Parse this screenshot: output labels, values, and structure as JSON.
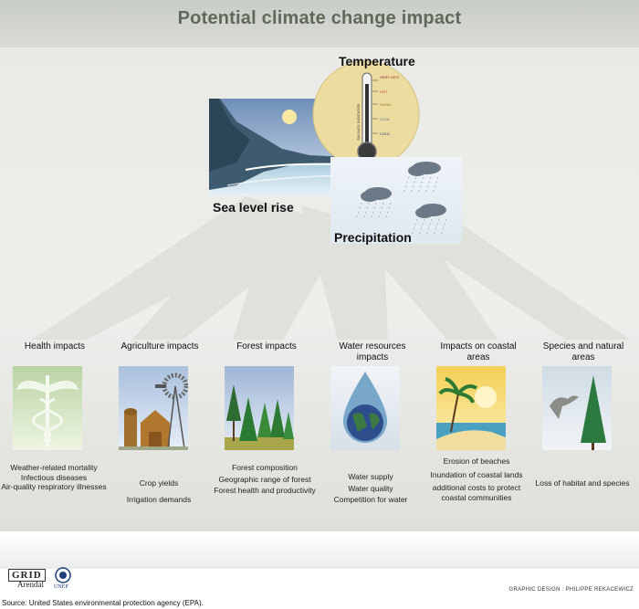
{
  "title": "Potential climate change impact",
  "drivers": {
    "temperature": "Temperature",
    "sea_level": "Sea level rise",
    "precipitation": "Precipitation",
    "thermometer": {
      "scale_label": "SAVINGS INDICATOR",
      "marks": [
        "VERY HOT!",
        "HOT",
        "WARM",
        "COOL",
        "COLD"
      ]
    }
  },
  "categories": [
    {
      "title": "Health impacts",
      "items": [
        "Weather-related mortality",
        "Infectious diseases",
        "Air-quality respiratory illnesses"
      ]
    },
    {
      "title": "Agriculture impacts",
      "items": [
        "Crop yields",
        "Irrigation demands"
      ]
    },
    {
      "title": "Forest impacts",
      "items": [
        "Forest composition",
        "Geographic range of forest",
        "Forest health and productivity"
      ]
    },
    {
      "title": "Water resources impacts",
      "items": [
        "Water supply",
        "Water quality",
        "Competition for water"
      ]
    },
    {
      "title": "Impacts on coastal areas",
      "items": [
        "Erosion of beaches",
        "Inundation of coastal lands",
        "additional costs to protect coastal communities"
      ]
    },
    {
      "title": "Species and natural areas",
      "items": [
        "Loss of habitat and species"
      ]
    }
  ],
  "footer": {
    "logo_grid": "GRID",
    "logo_arendal": "Arendal",
    "logo_unep": "UNEP",
    "credit": "GRAPHIC DESIGN : PHILIPPE REKACEWICZ",
    "source": "Source: United States environmental protection agency (EPA)."
  }
}
